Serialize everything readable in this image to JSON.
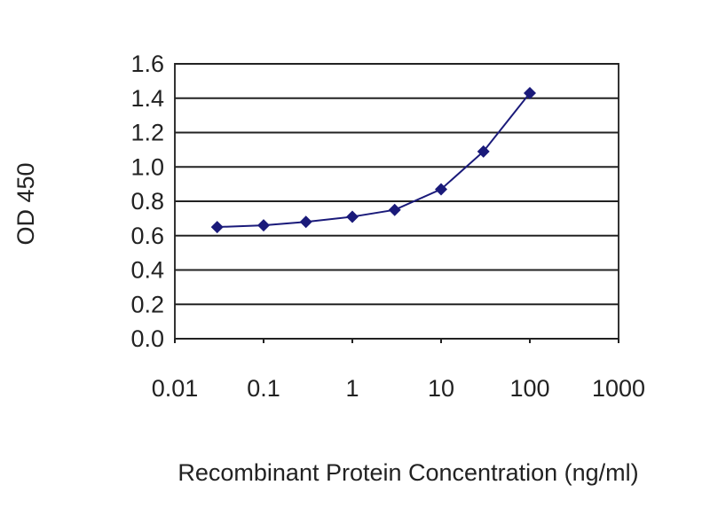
{
  "chart_data": {
    "type": "line",
    "title": "",
    "xlabel": "Recombinant Protein Concentration (ng/ml)",
    "ylabel": "OD 450",
    "x_scale": "log",
    "xlim": [
      0.01,
      1000
    ],
    "ylim": [
      0.0,
      1.6
    ],
    "x_ticks": [
      "0.01",
      "0.1",
      "1",
      "10",
      "100",
      "1000"
    ],
    "y_ticks": [
      "0.0",
      "0.2",
      "0.4",
      "0.6",
      "0.8",
      "1.0",
      "1.2",
      "1.4",
      "1.6"
    ],
    "grid": "horizontal",
    "legend": "none",
    "series": [
      {
        "color": "#1a1a7a",
        "marker": "diamond",
        "x": [
          0.03,
          0.1,
          0.3,
          1,
          3,
          10,
          30,
          100
        ],
        "y": [
          0.65,
          0.66,
          0.68,
          0.71,
          0.75,
          0.87,
          1.09,
          1.43
        ]
      }
    ]
  }
}
